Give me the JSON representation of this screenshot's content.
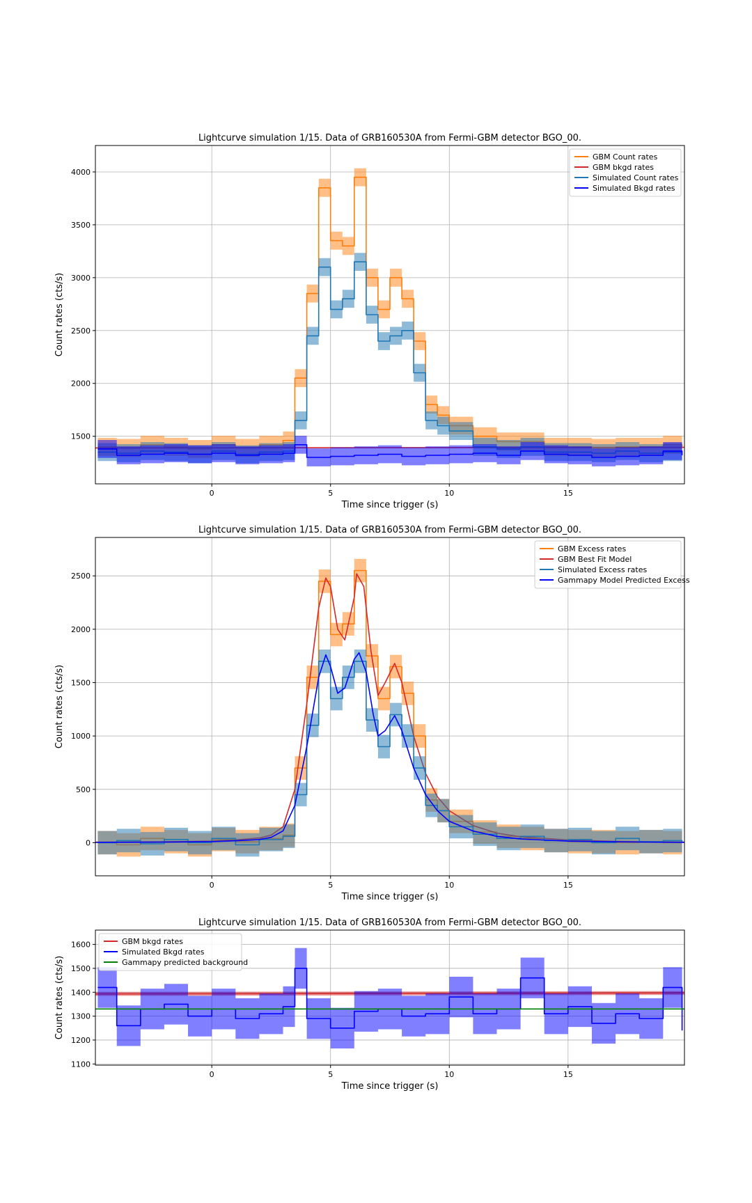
{
  "chart_data": [
    {
      "type": "line",
      "title": "Lightcurve simulation 1/15. Data of GRB160530A from Fermi-GBM detector BGO_00.",
      "xlabel": "Time since trigger (s)",
      "ylabel": "Count rates (cts/s)",
      "xlim": [
        -4.9,
        19.9
      ],
      "ylim": [
        1050,
        4250
      ],
      "xticks": [
        0,
        5,
        10,
        15
      ],
      "yticks": [
        1500,
        2000,
        2500,
        3000,
        3500,
        4000
      ],
      "grid": true,
      "legend_position": "top-right",
      "series": [
        {
          "name": "GBM Count rates",
          "color": "#ff7f0e",
          "style": "step",
          "band": true,
          "band_half_width": 85,
          "x": [
            -4.8,
            -4,
            -3,
            -2,
            -1,
            0,
            1,
            2,
            3,
            3.5,
            4,
            4.5,
            5,
            5.5,
            6,
            6.5,
            7,
            7.5,
            8,
            8.5,
            9,
            9.5,
            10,
            11,
            12,
            13,
            14,
            15,
            16,
            17,
            18,
            19,
            19.8
          ],
          "y": [
            1400,
            1390,
            1420,
            1400,
            1380,
            1420,
            1390,
            1420,
            1460,
            2050,
            2850,
            3850,
            3350,
            3300,
            3950,
            3000,
            2700,
            3000,
            2800,
            2400,
            1800,
            1700,
            1600,
            1500,
            1450,
            1450,
            1400,
            1400,
            1390,
            1400,
            1400,
            1420,
            1400
          ]
        },
        {
          "name": "GBM bkgd rates",
          "color": "#d62728",
          "style": "line",
          "band": false,
          "x": [
            -4.9,
            19.9
          ],
          "y": [
            1390,
            1395
          ]
        },
        {
          "name": "Simulated Count rates",
          "color": "#1f77b4",
          "style": "step",
          "band": true,
          "band_half_width": 85,
          "x": [
            -4.8,
            -4,
            -3,
            -2,
            -1,
            0,
            1,
            2,
            3,
            3.5,
            4,
            4.5,
            5,
            5.5,
            6,
            6.5,
            7,
            7.5,
            8,
            8.5,
            9,
            9.5,
            10,
            11,
            12,
            13,
            14,
            15,
            16,
            17,
            18,
            19,
            19.8
          ],
          "y": [
            1350,
            1340,
            1360,
            1350,
            1330,
            1360,
            1330,
            1350,
            1360,
            1650,
            2450,
            3100,
            2700,
            2800,
            3150,
            2650,
            2400,
            2450,
            2500,
            2100,
            1650,
            1600,
            1550,
            1400,
            1380,
            1400,
            1350,
            1350,
            1340,
            1360,
            1340,
            1350,
            1350
          ]
        },
        {
          "name": "Simulated Bkgd rates",
          "color": "#0000ff",
          "style": "step",
          "band": true,
          "band_half_width": 85,
          "x": [
            -4.8,
            -4,
            -3,
            -2,
            -1,
            0,
            1,
            2,
            3,
            3.5,
            4,
            5,
            6,
            7,
            8,
            9,
            10,
            11,
            12,
            13,
            14,
            15,
            16,
            17,
            18,
            19,
            19.8
          ],
          "y": [
            1380,
            1320,
            1330,
            1340,
            1330,
            1340,
            1320,
            1330,
            1340,
            1420,
            1300,
            1310,
            1320,
            1330,
            1310,
            1320,
            1330,
            1340,
            1320,
            1360,
            1330,
            1320,
            1300,
            1310,
            1320,
            1360,
            1320
          ]
        }
      ]
    },
    {
      "type": "line",
      "title": "Lightcurve simulation 1/15. Data of GRB160530A from Fermi-GBM detector BGO_00.",
      "xlabel": "Time since trigger (s)",
      "ylabel": "Count rates (cts/s)",
      "xlim": [
        -4.9,
        19.9
      ],
      "ylim": [
        -310,
        2860
      ],
      "xticks": [
        0,
        5,
        10,
        15
      ],
      "yticks": [
        0,
        500,
        1000,
        1500,
        2000,
        2500
      ],
      "grid": true,
      "legend_position": "top-right",
      "series": [
        {
          "name": "GBM Excess rates",
          "color": "#ff7f0e",
          "style": "step",
          "band": true,
          "band_half_width": 110,
          "x": [
            -4.8,
            -4,
            -3,
            -2,
            -1,
            0,
            1,
            2,
            3,
            3.5,
            4,
            4.5,
            5,
            5.5,
            6,
            6.5,
            7,
            7.5,
            8,
            8.5,
            9,
            9.5,
            10,
            11,
            12,
            13,
            14,
            15,
            16,
            17,
            18,
            19,
            19.8
          ],
          "y": [
            0,
            -20,
            40,
            10,
            -20,
            30,
            10,
            40,
            70,
            700,
            1550,
            2450,
            1950,
            2050,
            2550,
            1750,
            1350,
            1650,
            1400,
            1000,
            400,
            300,
            200,
            100,
            60,
            40,
            20,
            10,
            10,
            0,
            10,
            0,
            0
          ]
        },
        {
          "name": "GBM Best Fit Model",
          "color": "#d62728",
          "style": "line",
          "band": false,
          "x": [
            -4.9,
            -2,
            0,
            1,
            2,
            2.5,
            3,
            3.5,
            4,
            4.5,
            4.8,
            5,
            5.3,
            5.6,
            6,
            6.1,
            6.4,
            6.7,
            7,
            7.3,
            7.7,
            8,
            8.5,
            9,
            9.5,
            10,
            11,
            12,
            13,
            15,
            17,
            19.9
          ],
          "y": [
            5,
            8,
            15,
            25,
            45,
            70,
            150,
            500,
            1300,
            2200,
            2480,
            2400,
            2000,
            1900,
            2300,
            2520,
            2400,
            1800,
            1380,
            1500,
            1680,
            1500,
            1000,
            650,
            430,
            300,
            160,
            90,
            55,
            25,
            12,
            5
          ]
        },
        {
          "name": "Simulated Excess rates",
          "color": "#1f77b4",
          "style": "step",
          "band": true,
          "band_half_width": 110,
          "x": [
            -4.8,
            -4,
            -3,
            -2,
            -1,
            0,
            1,
            2,
            3,
            3.5,
            4,
            4.5,
            5,
            5.5,
            6,
            6.5,
            7,
            7.5,
            8,
            8.5,
            9,
            9.5,
            10,
            11,
            12,
            13,
            14,
            15,
            16,
            17,
            18,
            19,
            19.8
          ],
          "y": [
            0,
            20,
            -10,
            30,
            0,
            40,
            -20,
            30,
            60,
            450,
            1100,
            1700,
            1350,
            1550,
            1700,
            1150,
            900,
            1200,
            1000,
            700,
            350,
            300,
            150,
            80,
            40,
            60,
            20,
            30,
            0,
            40,
            10,
            20,
            0
          ]
        },
        {
          "name": "Gammapy Model Predicted Excess",
          "color": "#0000ff",
          "style": "line",
          "band": false,
          "x": [
            -4.9,
            -2,
            0,
            1,
            2,
            2.5,
            3,
            3.5,
            4,
            4.5,
            4.8,
            5,
            5.3,
            5.6,
            6,
            6.2,
            6.5,
            6.8,
            7,
            7.3,
            7.7,
            8,
            8.5,
            9,
            9.5,
            10,
            11,
            12,
            13,
            15,
            17,
            19.9
          ],
          "y": [
            3,
            6,
            10,
            18,
            30,
            50,
            110,
            350,
            900,
            1550,
            1760,
            1650,
            1400,
            1450,
            1720,
            1780,
            1600,
            1200,
            1000,
            1050,
            1190,
            1050,
            700,
            450,
            300,
            200,
            110,
            60,
            35,
            15,
            8,
            3
          ]
        }
      ]
    },
    {
      "type": "line",
      "title": "Lightcurve simulation 1/15. Data of GRB160530A from Fermi-GBM detector BGO_00.",
      "xlabel": "Time since trigger (s)",
      "ylabel": "Count rates (cts/s)",
      "xlim": [
        -4.9,
        19.9
      ],
      "ylim": [
        1095,
        1660
      ],
      "xticks": [
        0,
        5,
        10,
        15
      ],
      "yticks": [
        1100,
        1200,
        1300,
        1400,
        1500,
        1600
      ],
      "grid": true,
      "legend_position": "top-left",
      "series": [
        {
          "name": "GBM bkgd rates",
          "color": "#d62728",
          "style": "line",
          "band": true,
          "band_half_width": 8,
          "x": [
            -4.9,
            19.9
          ],
          "y": [
            1393,
            1397
          ]
        },
        {
          "name": "Simulated Bkgd rates",
          "color": "#0000ff",
          "style": "step",
          "band": true,
          "band_half_width": 85,
          "x": [
            -4.8,
            -4,
            -3,
            -2,
            -1,
            0,
            1,
            2,
            3,
            3.5,
            4,
            5,
            6,
            7,
            8,
            9,
            10,
            11,
            12,
            13,
            14,
            15,
            16,
            17,
            18,
            19,
            19.8
          ],
          "y": [
            1420,
            1260,
            1330,
            1350,
            1300,
            1330,
            1290,
            1310,
            1340,
            1500,
            1290,
            1250,
            1320,
            1330,
            1300,
            1310,
            1380,
            1310,
            1330,
            1460,
            1310,
            1340,
            1270,
            1310,
            1290,
            1420,
            1240
          ]
        },
        {
          "name": "Gammapy predicted background",
          "color": "#008000",
          "style": "line",
          "band": false,
          "x": [
            -4.9,
            19.9
          ],
          "y": [
            1330,
            1330
          ]
        }
      ]
    }
  ]
}
